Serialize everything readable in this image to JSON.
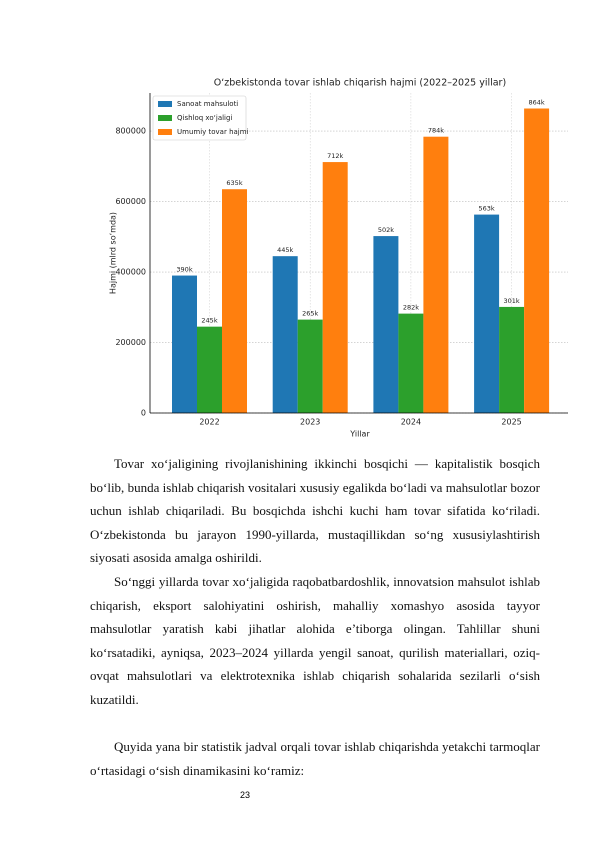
{
  "chart_data": {
    "type": "bar",
    "title": "O‘zbekistonda tovar ishlab chiqarish hajmi (2022–2025 yillar)",
    "x_label": "Yillar",
    "y_label": "Hajmi (mlrd so‘mda)",
    "categories": [
      "2022",
      "2023",
      "2024",
      "2025"
    ],
    "series": [
      {
        "name": "Sanoat mahsuloti",
        "color": "#1f77b4",
        "values": [
          390000,
          445000,
          502000,
          563000
        ],
        "value_labels": [
          "390k",
          "445k",
          "502k",
          "563k"
        ]
      },
      {
        "name": "Qishloq xo‘jaligi",
        "color": "#2ca02c",
        "values": [
          245000,
          265000,
          282000,
          301000
        ],
        "value_labels": [
          "245k",
          "265k",
          "282k",
          "301k"
        ]
      },
      {
        "name": "Umumiy tovar hajmi",
        "color": "#ff7f0e",
        "values": [
          635000,
          712000,
          784000,
          864000
        ],
        "value_labels": [
          "635k",
          "712k",
          "784k",
          "864k"
        ]
      }
    ],
    "ylim": [
      0,
      908000
    ],
    "yticks": [
      0,
      200000,
      400000,
      600000,
      800000
    ],
    "grid": true,
    "legend": "upper left"
  },
  "document": {
    "paragraphs": [
      "Tovar xo‘jaligining rivojlanishining ikkinchi bosqichi — kapitalistik bosqich bo‘lib, bunda ishlab chiqarish vositalari xususiy egalikda bo‘ladi va mahsulotlar bozor uchun ishlab chiqariladi. Bu bosqichda ishchi kuchi ham tovar sifatida ko‘riladi. O‘zbekistonda bu jarayon 1990-yillarda, mustaqillikdan so‘ng xususiylashtirish siyosati asosida amalga oshirildi.",
      "So‘nggi yillarda tovar xo‘jaligida raqobatbardoshlik, innovatsion mahsulot ishlab chiqarish, eksport salohiyatini oshirish, mahalliy xomashyo asosida tayyor mahsulotlar yaratish kabi jihatlar alohida e’tiborga olingan. Tahlillar shuni ko‘rsatadiki, ayniqsa, 2023–2024 yillarda yengil sanoat, qurilish materiallari, oziq-ovqat mahsulotlari va elektrotexnika ishlab chiqarish sohalarida sezilarli o‘sish kuzatildi.",
      "Quyida yana bir statistik jadval orqali tovar ishlab chiqarishda yetakchi tarmoqlar o‘rtasidagi o‘sish dinamikasini ko‘ramiz:"
    ],
    "page_number": "23"
  }
}
